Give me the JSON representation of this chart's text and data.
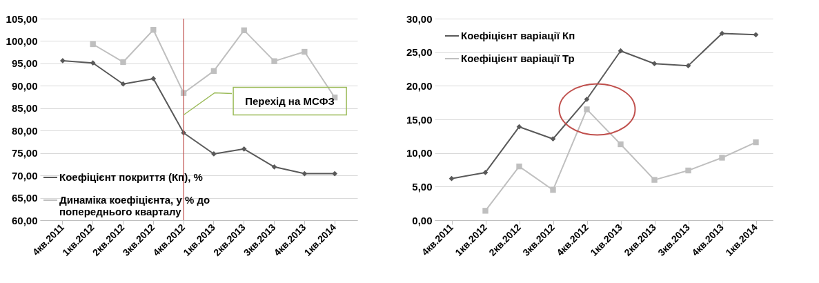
{
  "chart_data": [
    {
      "type": "line",
      "categories": [
        "4кв.2011",
        "1кв.2012",
        "2кв.2012",
        "3кв.2012",
        "4кв.2012",
        "1кв.2013",
        "2кв.2013",
        "3кв.2013",
        "4кв.2013",
        "1кв.2014"
      ],
      "series": [
        {
          "name": "Коефіцієнт покриття (Кп), %",
          "color": "#595959",
          "marker": "diamond",
          "values": [
            95.6,
            95.1,
            90.4,
            91.6,
            79.5,
            74.8,
            75.9,
            71.9,
            70.4,
            70.4
          ]
        },
        {
          "name": "Динаміка коефіцієнта, у % до попереднього кварталу",
          "color": "#bfbfbf",
          "marker": "square",
          "values": [
            null,
            99.3,
            95.3,
            102.5,
            88.4,
            93.3,
            102.4,
            95.5,
            97.6,
            87.4
          ]
        }
      ],
      "ylim": [
        60,
        105
      ],
      "yticks": [
        {
          "value": 60,
          "label": "60,00"
        },
        {
          "value": 65,
          "label": "65,00"
        },
        {
          "value": 70,
          "label": "70,00"
        },
        {
          "value": 75,
          "label": "75,00"
        },
        {
          "value": 80,
          "label": "80,00"
        },
        {
          "value": 85,
          "label": "85,00"
        },
        {
          "value": 90,
          "label": "90,00"
        },
        {
          "value": 95,
          "label": "95,00"
        },
        {
          "value": 100,
          "label": "100,00"
        },
        {
          "value": 105,
          "label": "105,00"
        }
      ],
      "grid": "y",
      "legend": "bottom left",
      "ref_lines": [
        {
          "axis": "x",
          "value": "4кв.2012",
          "color": "#c0504d"
        }
      ],
      "annotations": [
        {
          "text": "Перехід на МСФЗ",
          "x": "4кв.2012",
          "y": 83.5
        }
      ]
    },
    {
      "type": "line",
      "categories": [
        "4кв.2011",
        "1кв.2012",
        "2кв.2012",
        "3кв.2012",
        "4кв.2012",
        "1кв.2013",
        "2кв.2013",
        "3кв.2013",
        "4кв.2013",
        "1кв.2014"
      ],
      "series": [
        {
          "name": "Коефіцієнт варіації Кп",
          "color": "#595959",
          "marker": "diamond",
          "values": [
            6.2,
            7.1,
            13.9,
            12.1,
            18.0,
            25.2,
            23.3,
            23.0,
            27.8,
            27.6
          ]
        },
        {
          "name": "Коефіцієнт варіації Тр",
          "color": "#bfbfbf",
          "marker": "square",
          "values": [
            null,
            1.4,
            8.0,
            4.5,
            16.5,
            11.3,
            6.0,
            7.4,
            9.3,
            11.6
          ]
        }
      ],
      "ylim": [
        0,
        30
      ],
      "yticks": [
        {
          "value": 0,
          "label": "0,00"
        },
        {
          "value": 5,
          "label": "5,00"
        },
        {
          "value": 10,
          "label": "10,00"
        },
        {
          "value": 15,
          "label": "15,00"
        },
        {
          "value": 20,
          "label": "20,00"
        },
        {
          "value": 25,
          "label": "25,00"
        },
        {
          "value": 30,
          "label": "30,00"
        }
      ],
      "grid": "y",
      "legend": "top left"
    }
  ]
}
